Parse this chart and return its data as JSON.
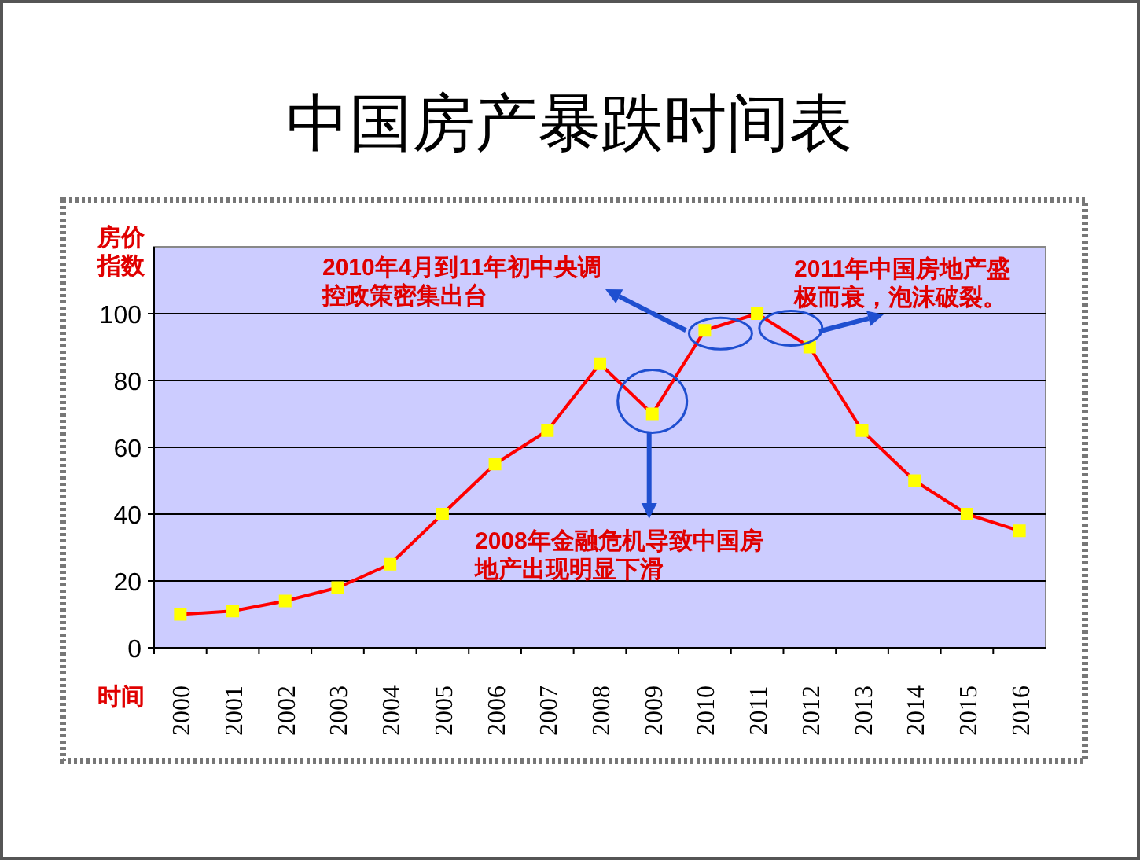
{
  "chart_data": {
    "type": "line",
    "title": "中国房产暴跌时间表",
    "ylabel": "房价指数",
    "xlabel": "时间",
    "categories": [
      "2000",
      "2001",
      "2002",
      "2003",
      "2004",
      "2005",
      "2006",
      "2007",
      "2008",
      "2009",
      "2010",
      "2011",
      "2012",
      "2013",
      "2014",
      "2015",
      "2016"
    ],
    "series": [
      {
        "color": "#ff0000",
        "values": [
          10,
          11,
          14,
          18,
          25,
          40,
          55,
          65,
          85,
          70,
          95,
          100,
          90,
          65,
          50,
          40,
          35
        ]
      }
    ],
    "ylim": [
      0,
      120
    ],
    "yticks": [
      0,
      20,
      40,
      60,
      80,
      100
    ],
    "grid": "y",
    "marker": "square",
    "line_style": "solid",
    "annotations": [
      "2010年4月到11年初中央调控政策密集出台",
      "2011年中国房地产盛极而衰，泡沫破裂。",
      "2008年金融危机导致中国房地产出现明显下滑"
    ]
  }
}
